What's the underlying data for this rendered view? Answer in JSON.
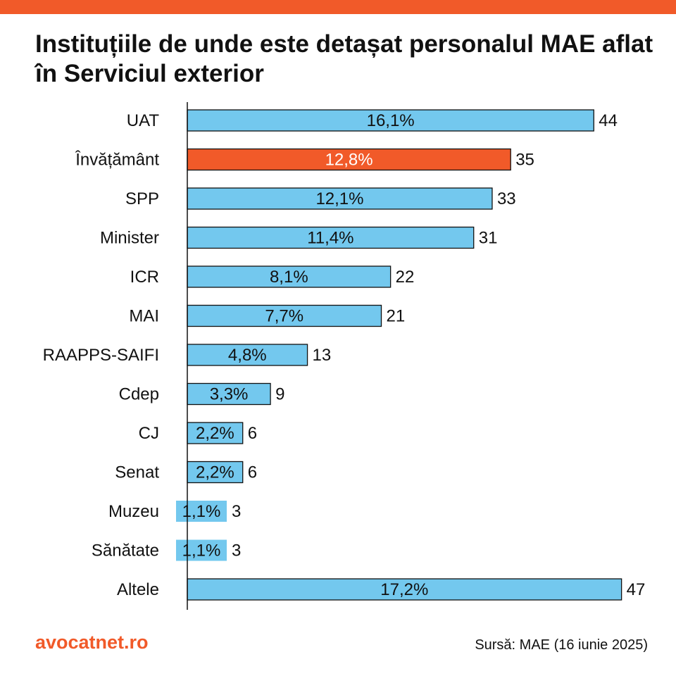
{
  "colors": {
    "accent": "#f15a29",
    "bar": "#73c8ee",
    "highlight": "#f15a29",
    "outline": "#111111"
  },
  "title": "Instituțiile de unde este detașat personalul MAE aflat în Serviciul exterior",
  "footer": {
    "brand": "avocatnet.ro",
    "source": "Sursă: MAE (16 iunie 2025)"
  },
  "chart_data": {
    "type": "bar",
    "orientation": "horizontal",
    "title": "Instituțiile de unde este detașat personalul MAE aflat în Serviciul exterior",
    "categories": [
      "UAT",
      "Învățământ",
      "SPP",
      "Minister",
      "ICR",
      "MAI",
      "RAAPPS-SAIFI",
      "Cdep",
      "CJ",
      "Senat",
      "Muzeu",
      "Sănătate",
      "Altele"
    ],
    "values": [
      44,
      35,
      33,
      31,
      22,
      21,
      13,
      9,
      6,
      6,
      3,
      3,
      47
    ],
    "percent_labels": [
      "16,1%",
      "12,8%",
      "12,1%",
      "11,4%",
      "8,1%",
      "7,7%",
      "4,8%",
      "3,3%",
      "2,2%",
      "2,2%",
      "1,1%",
      "1,1%",
      "17,2%"
    ],
    "highlighted_category": "Învățământ",
    "grid": false,
    "legend": "none"
  }
}
